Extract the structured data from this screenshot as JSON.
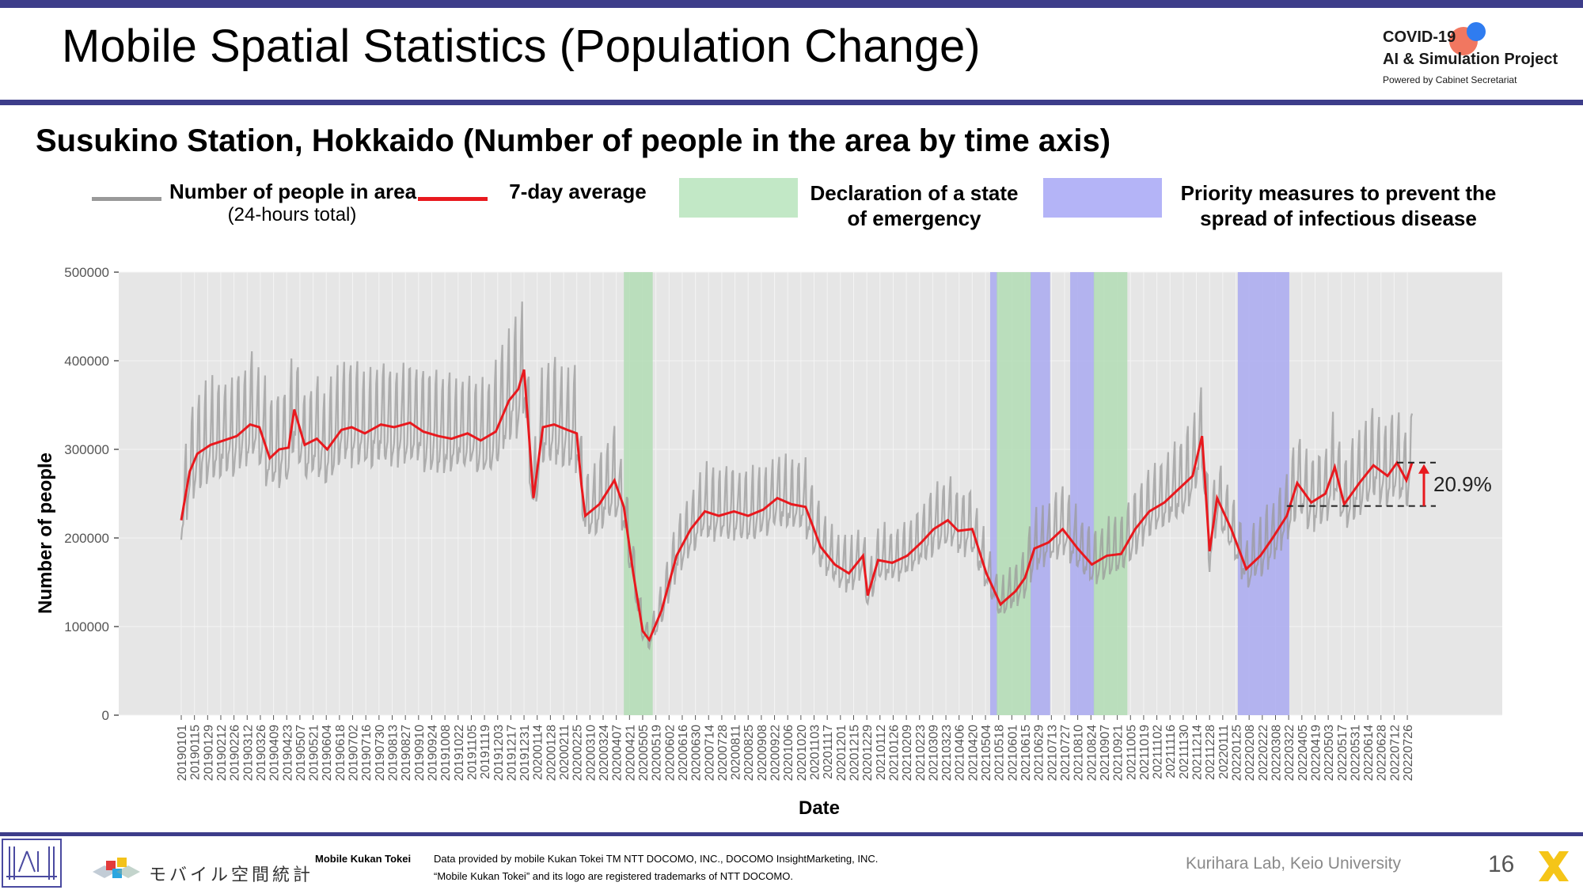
{
  "header": {
    "title": "Mobile Spatial Statistics (Population Change)",
    "logo": {
      "line1": "COVID-19",
      "line2": "AI & Simulation Project",
      "line3": "Powered by Cabinet Secretariat"
    }
  },
  "chart_data": {
    "type": "line",
    "title": "Susukino Station, Hokkaido (Number of people in the area by time axis)",
    "xlabel": "Date",
    "ylabel": "Number of people",
    "ylim": [
      0,
      500000
    ],
    "yticks": [
      "0",
      "100000",
      "200000",
      "300000",
      "400000",
      "500000"
    ],
    "x_start": "20190101",
    "x_end": "20220731",
    "xticks": [
      "20190101",
      "20190115",
      "20190129",
      "20190212",
      "20190226",
      "20190312",
      "20190326",
      "20190409",
      "20190423",
      "20190507",
      "20190521",
      "20190604",
      "20190618",
      "20190702",
      "20190716",
      "20190730",
      "20190813",
      "20190827",
      "20190910",
      "20190924",
      "20191008",
      "20191022",
      "20191105",
      "20191119",
      "20191203",
      "20191217",
      "20191231",
      "20200114",
      "20200128",
      "20200211",
      "20200225",
      "20200310",
      "20200324",
      "20200407",
      "20200421",
      "20200505",
      "20200519",
      "20200602",
      "20200616",
      "20200630",
      "20200714",
      "20200728",
      "20200811",
      "20200825",
      "20200908",
      "20200922",
      "20201006",
      "20201020",
      "20201103",
      "20201117",
      "20201201",
      "20201215",
      "20201229",
      "20210112",
      "20210126",
      "20210209",
      "20210223",
      "20210309",
      "20210323",
      "20210406",
      "20210420",
      "20210504",
      "20210518",
      "20210601",
      "20210615",
      "20210629",
      "20210713",
      "20210727",
      "20210810",
      "20210824",
      "20210907",
      "20210921",
      "20211005",
      "20211019",
      "20211102",
      "20211116",
      "20211130",
      "20211214",
      "20211228",
      "20220111",
      "20220125",
      "20220208",
      "20220222",
      "20220308",
      "20220322",
      "20220405",
      "20220419",
      "20220503",
      "20220517",
      "20220531",
      "20220614",
      "20220628",
      "20220712",
      "20220726"
    ],
    "legend": [
      {
        "label": "Number of people in area",
        "sublabel": "(24-hours total)",
        "color": "#999999",
        "kind": "line"
      },
      {
        "label": "7-day average",
        "color": "#e8191e",
        "kind": "line"
      },
      {
        "label": "Declaration of a state of emergency",
        "color": "#c2e8c6",
        "kind": "band"
      },
      {
        "label": "Priority measures to prevent the spread of infectious disease",
        "color": "#b4b4f7",
        "kind": "band"
      }
    ],
    "periods": [
      {
        "kind": "emergency",
        "start": "20200415",
        "end": "20200514"
      },
      {
        "kind": "priority",
        "start": "20210509",
        "end": "20210515"
      },
      {
        "kind": "emergency",
        "start": "20210516",
        "end": "20210620"
      },
      {
        "kind": "priority",
        "start": "20210621",
        "end": "20210710"
      },
      {
        "kind": "priority",
        "start": "20210802",
        "end": "20210826"
      },
      {
        "kind": "emergency",
        "start": "20210827",
        "end": "20210930"
      },
      {
        "kind": "priority",
        "start": "20220127",
        "end": "20220321"
      }
    ],
    "series": [
      {
        "name": "7-day average",
        "color": "#e8191e",
        "points": [
          [
            "20190101",
            220000
          ],
          [
            "20190105",
            245000
          ],
          [
            "20190110",
            275000
          ],
          [
            "20190118",
            295000
          ],
          [
            "20190201",
            305000
          ],
          [
            "20190215",
            310000
          ],
          [
            "20190301",
            315000
          ],
          [
            "20190315",
            328000
          ],
          [
            "20190325",
            325000
          ],
          [
            "20190405",
            290000
          ],
          [
            "20190415",
            300000
          ],
          [
            "20190425",
            302000
          ],
          [
            "20190501",
            345000
          ],
          [
            "20190512",
            305000
          ],
          [
            "20190525",
            312000
          ],
          [
            "20190605",
            300000
          ],
          [
            "20190620",
            322000
          ],
          [
            "20190701",
            325000
          ],
          [
            "20190715",
            318000
          ],
          [
            "20190801",
            328000
          ],
          [
            "20190815",
            325000
          ],
          [
            "20190901",
            330000
          ],
          [
            "20190915",
            320000
          ],
          [
            "20191001",
            315000
          ],
          [
            "20191015",
            312000
          ],
          [
            "20191101",
            318000
          ],
          [
            "20191115",
            310000
          ],
          [
            "20191201",
            320000
          ],
          [
            "20191215",
            355000
          ],
          [
            "20191225",
            368000
          ],
          [
            "20191231",
            390000
          ],
          [
            "20200105",
            320000
          ],
          [
            "20200110",
            245000
          ],
          [
            "20200120",
            325000
          ],
          [
            "20200201",
            328000
          ],
          [
            "20200215",
            322000
          ],
          [
            "20200225",
            318000
          ],
          [
            "20200301",
            260000
          ],
          [
            "20200305",
            225000
          ],
          [
            "20200320",
            238000
          ],
          [
            "20200405",
            265000
          ],
          [
            "20200415",
            235000
          ],
          [
            "20200425",
            160000
          ],
          [
            "20200505",
            95000
          ],
          [
            "20200512",
            85000
          ],
          [
            "20200525",
            118000
          ],
          [
            "20200610",
            180000
          ],
          [
            "20200625",
            210000
          ],
          [
            "20200710",
            230000
          ],
          [
            "20200725",
            225000
          ],
          [
            "20200810",
            230000
          ],
          [
            "20200825",
            225000
          ],
          [
            "20200910",
            232000
          ],
          [
            "20200925",
            245000
          ],
          [
            "20201010",
            238000
          ],
          [
            "20201025",
            235000
          ],
          [
            "20201110",
            190000
          ],
          [
            "20201125",
            170000
          ],
          [
            "20201210",
            160000
          ],
          [
            "20201225",
            180000
          ],
          [
            "20201230",
            135000
          ],
          [
            "20210110",
            175000
          ],
          [
            "20210125",
            172000
          ],
          [
            "20210210",
            180000
          ],
          [
            "20210225",
            195000
          ],
          [
            "20210310",
            210000
          ],
          [
            "20210325",
            220000
          ],
          [
            "20210405",
            208000
          ],
          [
            "20210420",
            210000
          ],
          [
            "20210505",
            160000
          ],
          [
            "20210520",
            125000
          ],
          [
            "20210605",
            140000
          ],
          [
            "20210615",
            155000
          ],
          [
            "20210625",
            188000
          ],
          [
            "20210710",
            195000
          ],
          [
            "20210725",
            210000
          ],
          [
            "20210810",
            188000
          ],
          [
            "20210825",
            170000
          ],
          [
            "20210910",
            180000
          ],
          [
            "20210925",
            182000
          ],
          [
            "20211010",
            210000
          ],
          [
            "20211025",
            230000
          ],
          [
            "20211110",
            240000
          ],
          [
            "20211125",
            255000
          ],
          [
            "20211210",
            270000
          ],
          [
            "20211220",
            315000
          ],
          [
            "20211228",
            185000
          ],
          [
            "20220105",
            245000
          ],
          [
            "20220120",
            210000
          ],
          [
            "20220205",
            165000
          ],
          [
            "20220220",
            180000
          ],
          [
            "20220305",
            200000
          ],
          [
            "20220320",
            225000
          ],
          [
            "20220331",
            262000
          ],
          [
            "20220415",
            240000
          ],
          [
            "20220430",
            250000
          ],
          [
            "20220510",
            280000
          ],
          [
            "20220520",
            238000
          ],
          [
            "20220605",
            262000
          ],
          [
            "20220620",
            282000
          ],
          [
            "20220705",
            270000
          ],
          [
            "20220715",
            285000
          ],
          [
            "20220725",
            265000
          ],
          [
            "20220731",
            285000
          ]
        ]
      },
      {
        "name": "Number of people in area",
        "color": "#999999",
        "note": "daily totals oscillating around the 7-day average with weekend peaks"
      }
    ],
    "annotation": {
      "text": "20.9%",
      "from": 236000,
      "to": 285000
    }
  },
  "footer": {
    "japanese_logo": "モバイル空間統計",
    "mobile_kukan": "Mobile Kukan Tokei",
    "data_line1": "Data provided by mobile Kukan Tokei TM NTT DOCOMO, INC., DOCOMO InsightMarketing, INC.",
    "data_line2": "“Mobile Kukan Tokei” and its logo are registered trademarks of NTT DOCOMO.",
    "lab": "Kurihara Lab, Keio University",
    "page": "16"
  }
}
